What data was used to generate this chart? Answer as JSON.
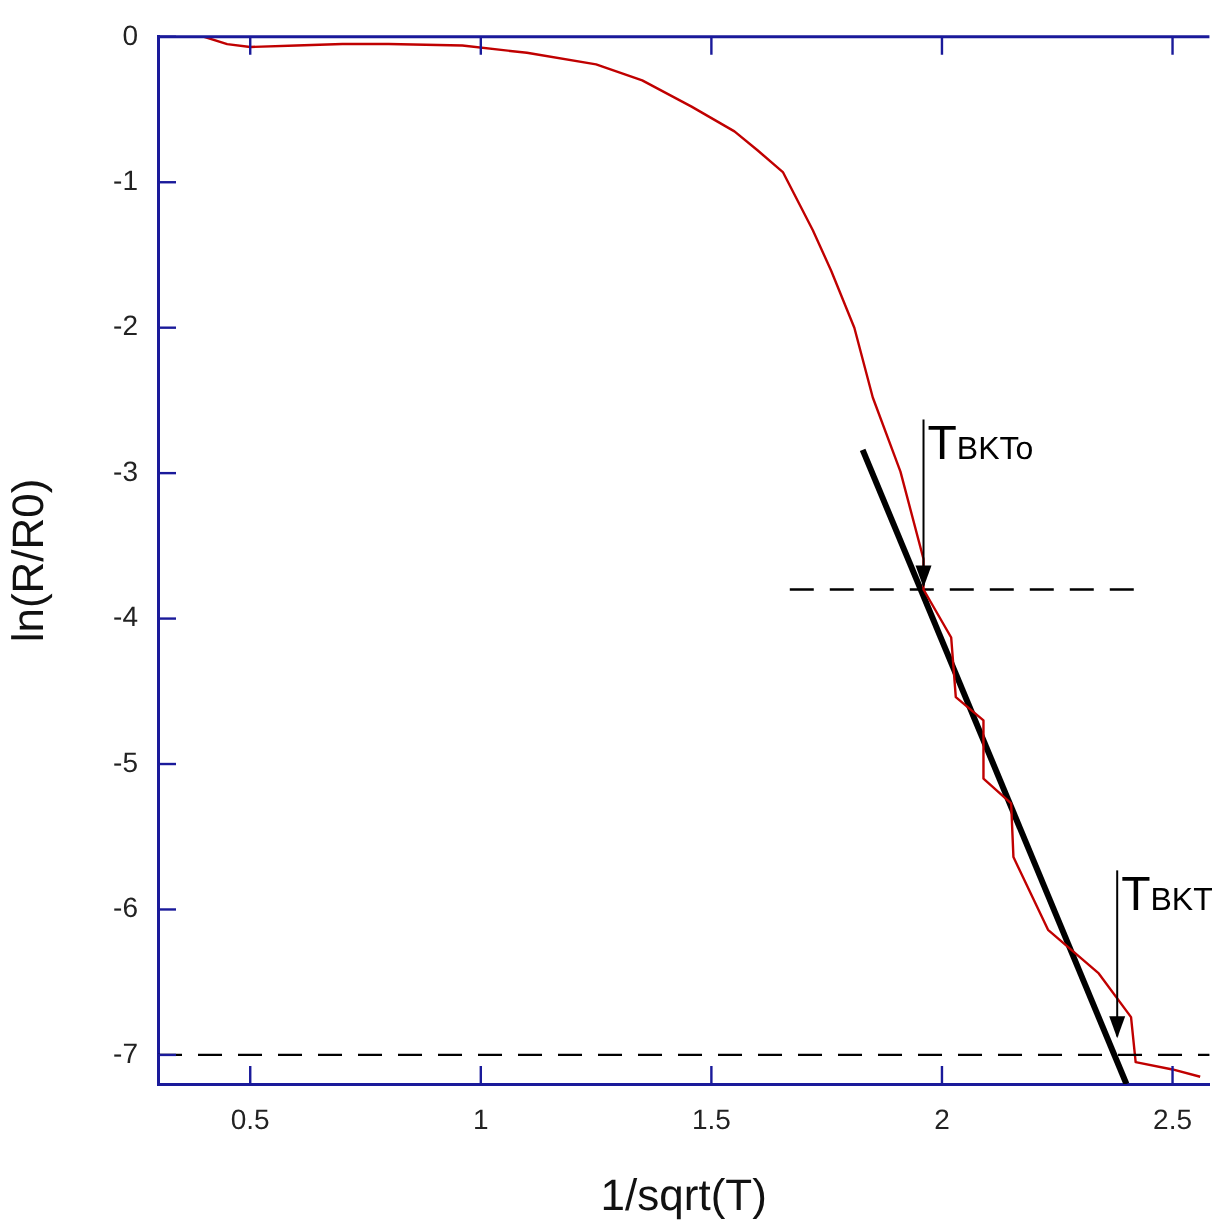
{
  "chart_data": {
    "type": "line",
    "xlabel": "1/sqrt(T)",
    "ylabel": "ln(R/R0)",
    "xlim": [
      0.3,
      2.58
    ],
    "xticks": [
      0.5,
      1,
      1.5,
      2,
      2.5
    ],
    "ylim": [
      -7.2,
      0
    ],
    "yticks": [
      0,
      -1,
      -2,
      -3,
      -4,
      -5,
      -6,
      -7
    ],
    "grid": false,
    "legend": false,
    "marker": "none",
    "series": [
      {
        "color": "#c00000",
        "x": [
          0.32,
          0.4,
          0.45,
          0.5,
          0.6,
          0.7,
          0.8,
          0.96,
          1.1,
          1.25,
          1.35,
          1.457,
          1.55,
          1.6,
          1.655,
          1.72,
          1.76,
          1.81,
          1.85,
          1.91,
          1.96,
          1.96,
          2.02,
          2.03,
          2.09,
          2.09,
          2.15,
          2.155,
          2.23,
          2.34,
          2.41,
          2.42,
          2.5,
          2.56
        ],
        "values": [
          0,
          0,
          -0.05,
          -0.07,
          -0.06,
          -0.05,
          -0.05,
          -0.06,
          -0.11,
          -0.19,
          -0.3,
          -0.48,
          -0.65,
          -0.78,
          -0.93,
          -1.33,
          -1.61,
          -2.0,
          -2.48,
          -2.99,
          -3.59,
          -3.8,
          -4.13,
          -4.54,
          -4.7,
          -5.1,
          -5.27,
          -5.64,
          -6.14,
          -6.44,
          -6.74,
          -7.05,
          -7.1,
          -7.15
        ]
      },
      {
        "type": "line",
        "color": "#000000",
        "x": [
          1.828,
          2.4
        ],
        "values": [
          -2.84,
          -7.2
        ]
      },
      {
        "type": "line",
        "color": "#000000",
        "line_style": "dashed",
        "x": [
          1.67,
          2.42
        ],
        "values": [
          -3.8,
          -3.8
        ]
      }
    ],
    "ref_lines": [
      {
        "axis": "y",
        "value": -7,
        "color": "#000000",
        "line_style": "dashed"
      }
    ],
    "annotations": [
      {
        "text": "T$_{BKTo}$",
        "x": 1.96,
        "y": -3.8
      },
      {
        "text": "T$_{BKT}$",
        "x": 2.38,
        "y": -6.9
      }
    ]
  }
}
